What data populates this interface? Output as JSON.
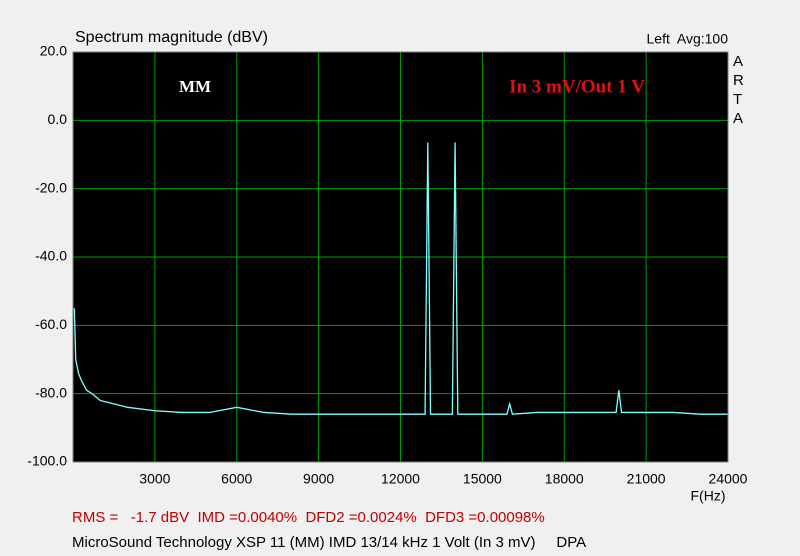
{
  "chart_data": {
    "type": "line",
    "title": "Spectrum magnitude (dBV)",
    "subtitle": "Left  Avg:100",
    "side_label": "ARTA",
    "x_label": "F(Hz)",
    "annotations": [
      {
        "text": "MM",
        "color": "#ffffff"
      },
      {
        "text": "In 3 mV/Out 1 V",
        "color": "#e01010"
      }
    ],
    "footer": [
      {
        "text": "RMS =   -1.7 dBV  IMD =0.0040%  DFD2 =0.0024%  DFD3 =0.00098%",
        "color": "#c00000"
      },
      {
        "text": "MicroSound Technology XSP 11 (MM) IMD 13/14 kHz 1 Volt (In 3 mV)     DPA",
        "color": "#000000"
      }
    ],
    "x": [
      50,
      100,
      200,
      300,
      500,
      700,
      1000,
      1500,
      2000,
      3000,
      4000,
      5000,
      6000,
      7000,
      8000,
      9000,
      10000,
      11000,
      12000,
      12900,
      13000,
      13100,
      13500,
      13900,
      14000,
      14100,
      15000,
      15900,
      16000,
      16100,
      17000,
      18000,
      19000,
      19900,
      20000,
      20100,
      21000,
      22000,
      23000,
      24000
    ],
    "series": [
      {
        "color": "#80ffff",
        "values": [
          -55,
          -70,
          -74,
          -76,
          -79,
          -80,
          -82,
          -83,
          -84,
          -85,
          -85.5,
          -85.5,
          -84,
          -85.5,
          -86,
          -86,
          -86,
          -86,
          -86,
          -86,
          -6.5,
          -86,
          -86,
          -86,
          -6.5,
          -86,
          -86,
          -86,
          -83,
          -86,
          -85.5,
          -85.5,
          -85.5,
          -85.5,
          -79,
          -85.5,
          -85.5,
          -85.5,
          -86,
          -86
        ]
      }
    ],
    "xlim": [
      0,
      24000
    ],
    "xticks": [
      3000,
      6000,
      9000,
      12000,
      15000,
      18000,
      21000,
      24000
    ],
    "ylim": [
      -100,
      20
    ],
    "yticks": [
      {
        "value": 20,
        "label": "20.0"
      },
      {
        "value": 0,
        "label": "0.0"
      },
      {
        "value": -20,
        "label": "-20.0"
      },
      {
        "value": -40,
        "label": "-40.0"
      },
      {
        "value": -60,
        "label": "-60.0"
      },
      {
        "value": -80,
        "label": "-80.0"
      },
      {
        "value": -100,
        "label": "-100.0"
      }
    ],
    "grid": true,
    "grid_color": "#00a000",
    "plot_background": "#000000"
  }
}
